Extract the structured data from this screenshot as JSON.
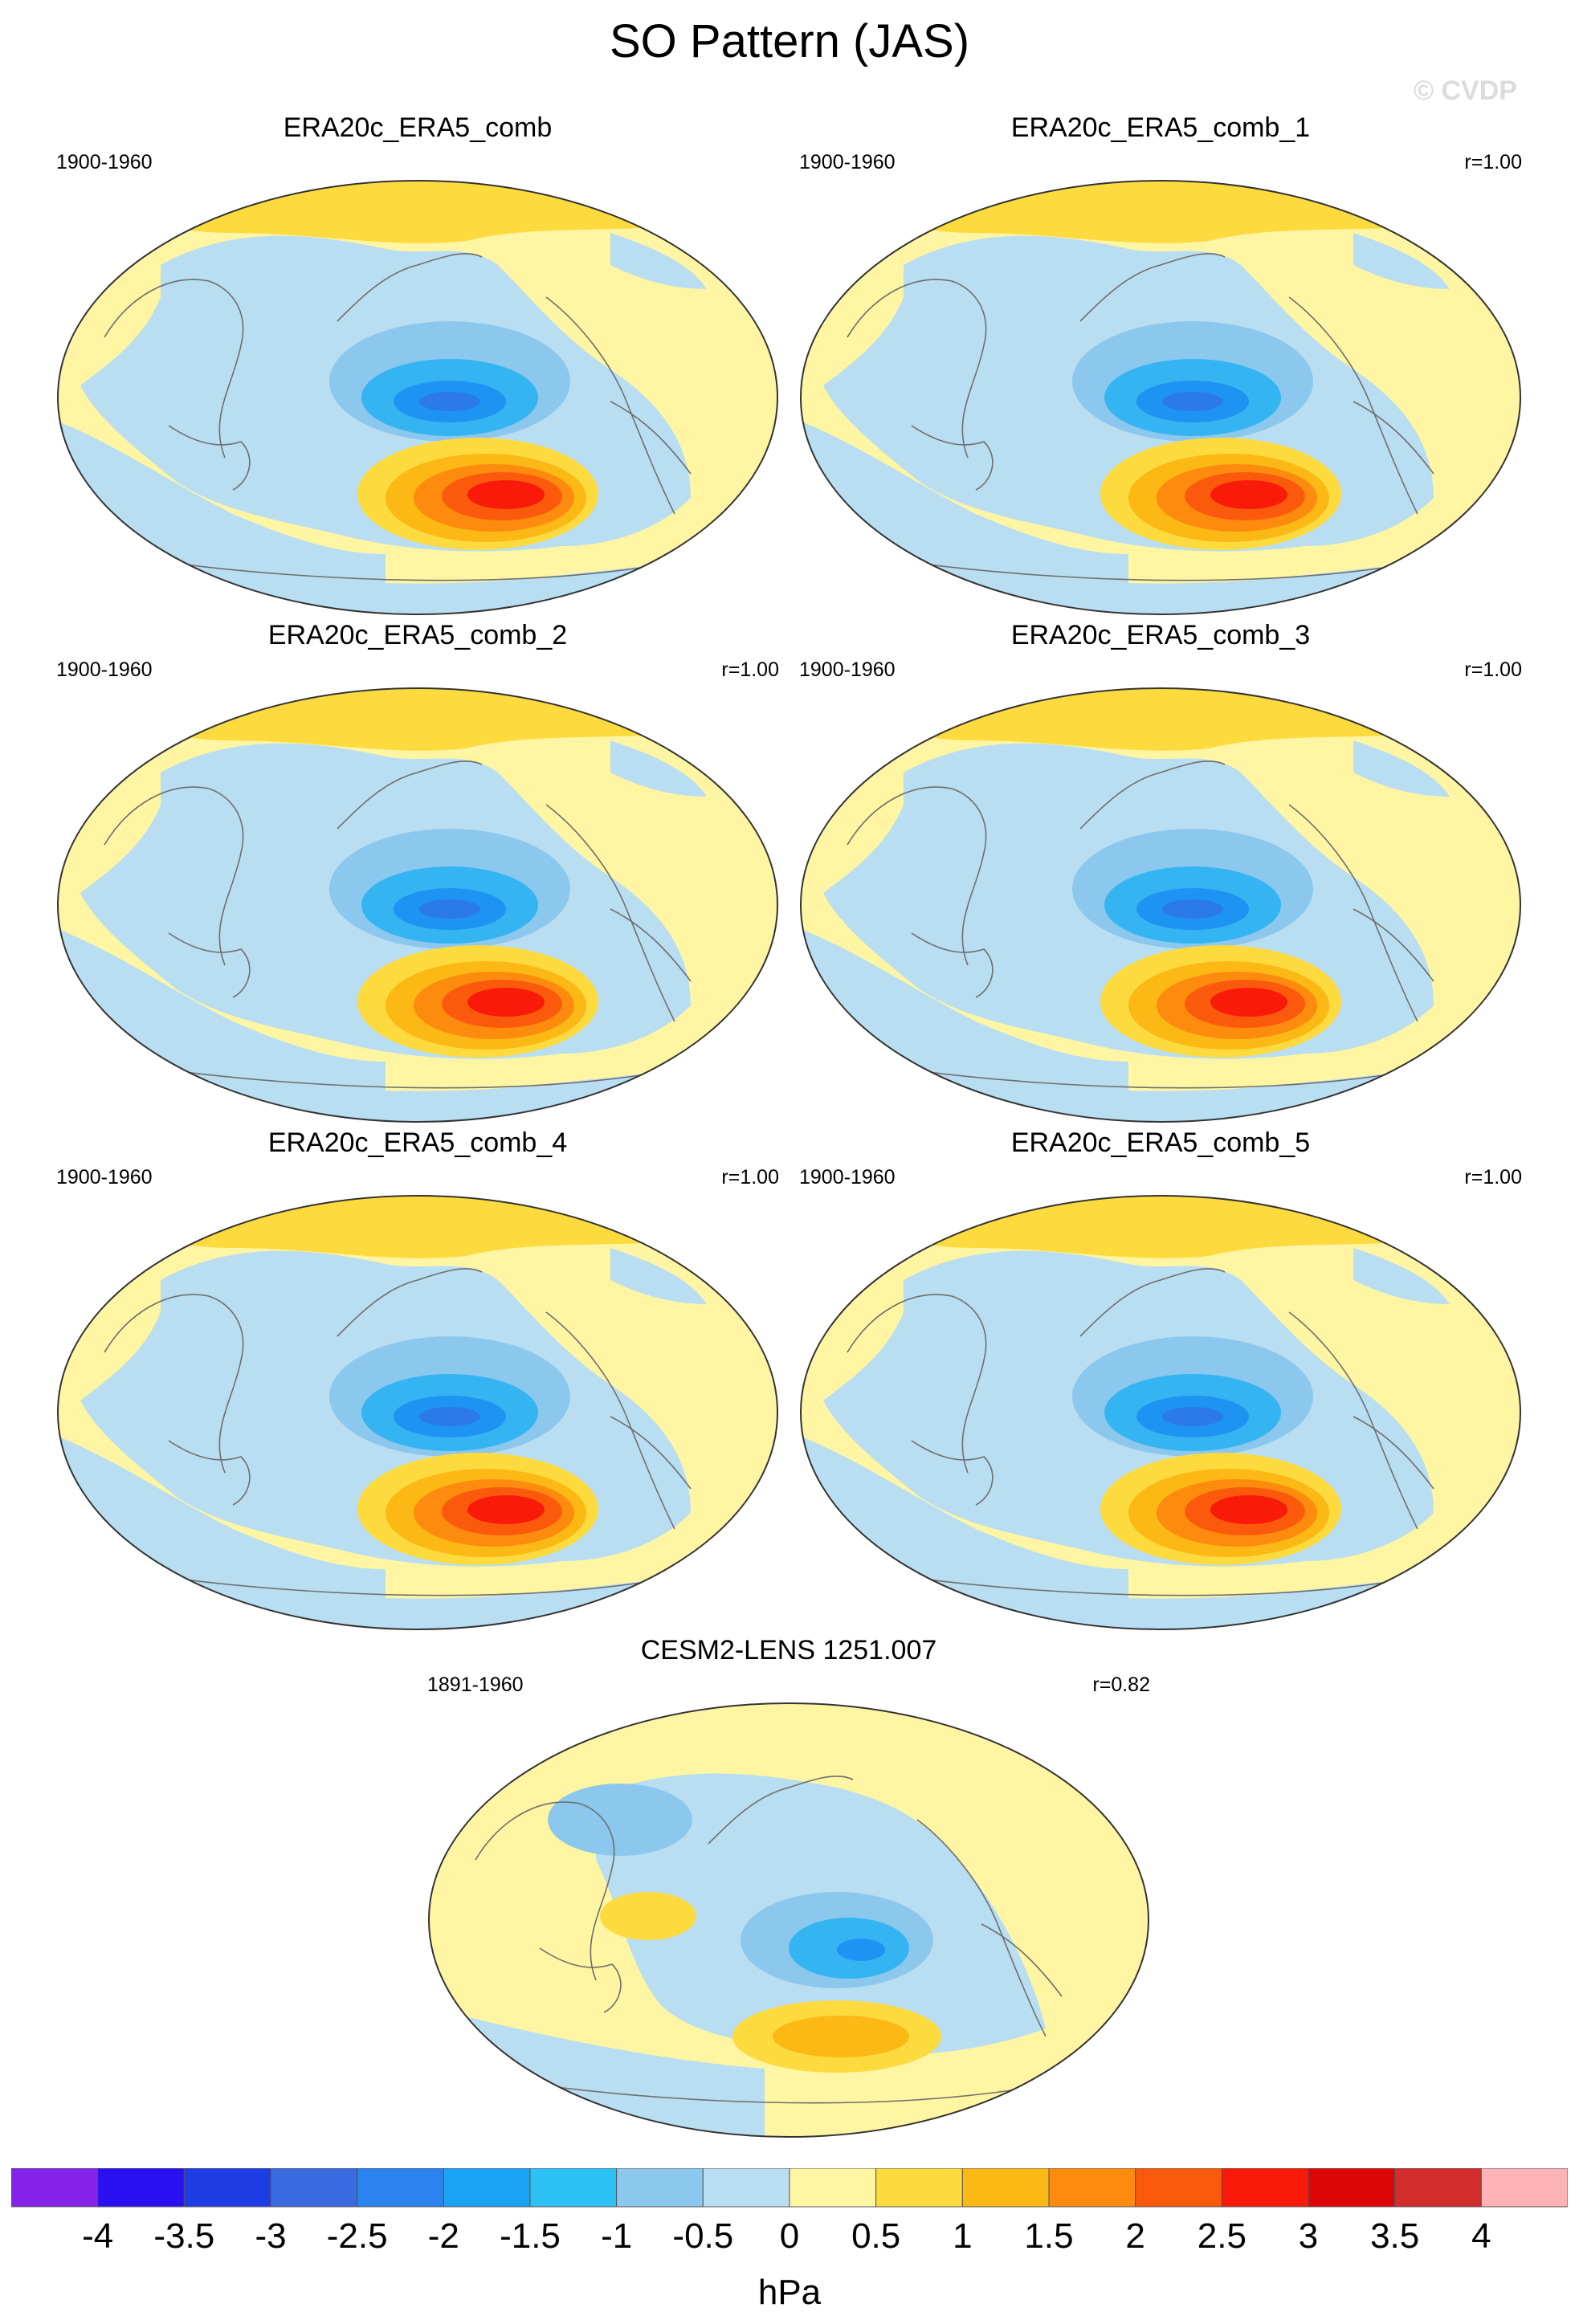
{
  "title": "SO Pattern (JAS)",
  "watermark": "© CVDP",
  "units": "hPa",
  "colors": {
    "ocean": "#b9def2",
    "land": "#fff5a2",
    "pos1": "#fddb3f",
    "pos2": "#fcb814",
    "pos3": "#fc8b0e",
    "pos4": "#fb5a0c",
    "pos5": "#fa1a0a",
    "neg1": "#8cc8ee",
    "neg2": "#34b5f2",
    "neg3": "#1d94f2",
    "neg4": "#2c7ae9",
    "coast": "#6e6e6e",
    "border": "#333333"
  },
  "panels": [
    {
      "id": "p0",
      "name": "ERA20c_ERA5_comb",
      "period": "1900-1960",
      "r": "",
      "kind": "obs"
    },
    {
      "id": "p1",
      "name": "ERA20c_ERA5_comb_1",
      "period": "1900-1960",
      "r": "r=1.00",
      "kind": "obs"
    },
    {
      "id": "p2",
      "name": "ERA20c_ERA5_comb_2",
      "period": "1900-1960",
      "r": "r=1.00",
      "kind": "obs"
    },
    {
      "id": "p3",
      "name": "ERA20c_ERA5_comb_3",
      "period": "1900-1960",
      "r": "r=1.00",
      "kind": "obs"
    },
    {
      "id": "p4",
      "name": "ERA20c_ERA5_comb_4",
      "period": "1900-1960",
      "r": "r=1.00",
      "kind": "obs"
    },
    {
      "id": "p5",
      "name": "ERA20c_ERA5_comb_5",
      "period": "1900-1960",
      "r": "r=1.00",
      "kind": "obs"
    },
    {
      "id": "p6",
      "name": "CESM2-LENS 1251.007",
      "period": "1891-1960",
      "r": "r=0.82",
      "kind": "model"
    }
  ],
  "colorbar": {
    "colors": [
      "#8422e8",
      "#2b10f2",
      "#1f3de4",
      "#3a6ae0",
      "#2a83ee",
      "#1aa3f4",
      "#2ec1f5",
      "#8cc8ee",
      "#b9def2",
      "#fff5a2",
      "#fddb3f",
      "#fcb814",
      "#fc8b0e",
      "#fb5a0c",
      "#fa1a0a",
      "#dd0606",
      "#d12d2d",
      "#fdb2b5"
    ],
    "labels": [
      "-4",
      "-3.5",
      "-3",
      "-2.5",
      "-2",
      "-1.5",
      "-1",
      "-0.5",
      "0",
      "0.5",
      "1",
      "1.5",
      "2",
      "2.5",
      "3",
      "3.5",
      "4"
    ]
  }
}
